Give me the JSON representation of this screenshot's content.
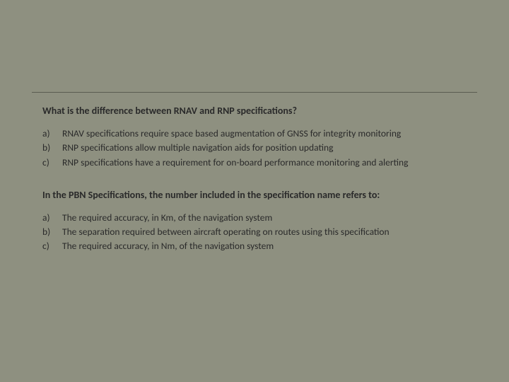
{
  "slide": {
    "background_color": "#8e9080",
    "divider_color": "#5a5c50",
    "text_color": "#2a2a2a",
    "font_family": "Calibri",
    "question_fontsize": 14,
    "option_fontsize": 13.5
  },
  "q1": {
    "text": "What is the difference between RNAV and RNP specifications?",
    "options": [
      {
        "marker": "a)",
        "text": "RNAV specifications require space based augmentation of GNSS for integrity monitoring"
      },
      {
        "marker": "b)",
        "text": "RNP specifications allow multiple navigation aids for position updating"
      },
      {
        "marker": "c)",
        "text": "RNP specifications have a requirement for on-board performance monitoring and alerting"
      }
    ]
  },
  "q2": {
    "text": "In the PBN Specifications, the number included in the specification name refers to:",
    "options": [
      {
        "marker": "a)",
        "text": "The required accuracy, in Km, of the navigation system"
      },
      {
        "marker": "b)",
        "text": "The separation required between aircraft operating on routes using this specification"
      },
      {
        "marker": "c)",
        "text": "The required accuracy, in Nm, of the navigation system"
      }
    ]
  }
}
